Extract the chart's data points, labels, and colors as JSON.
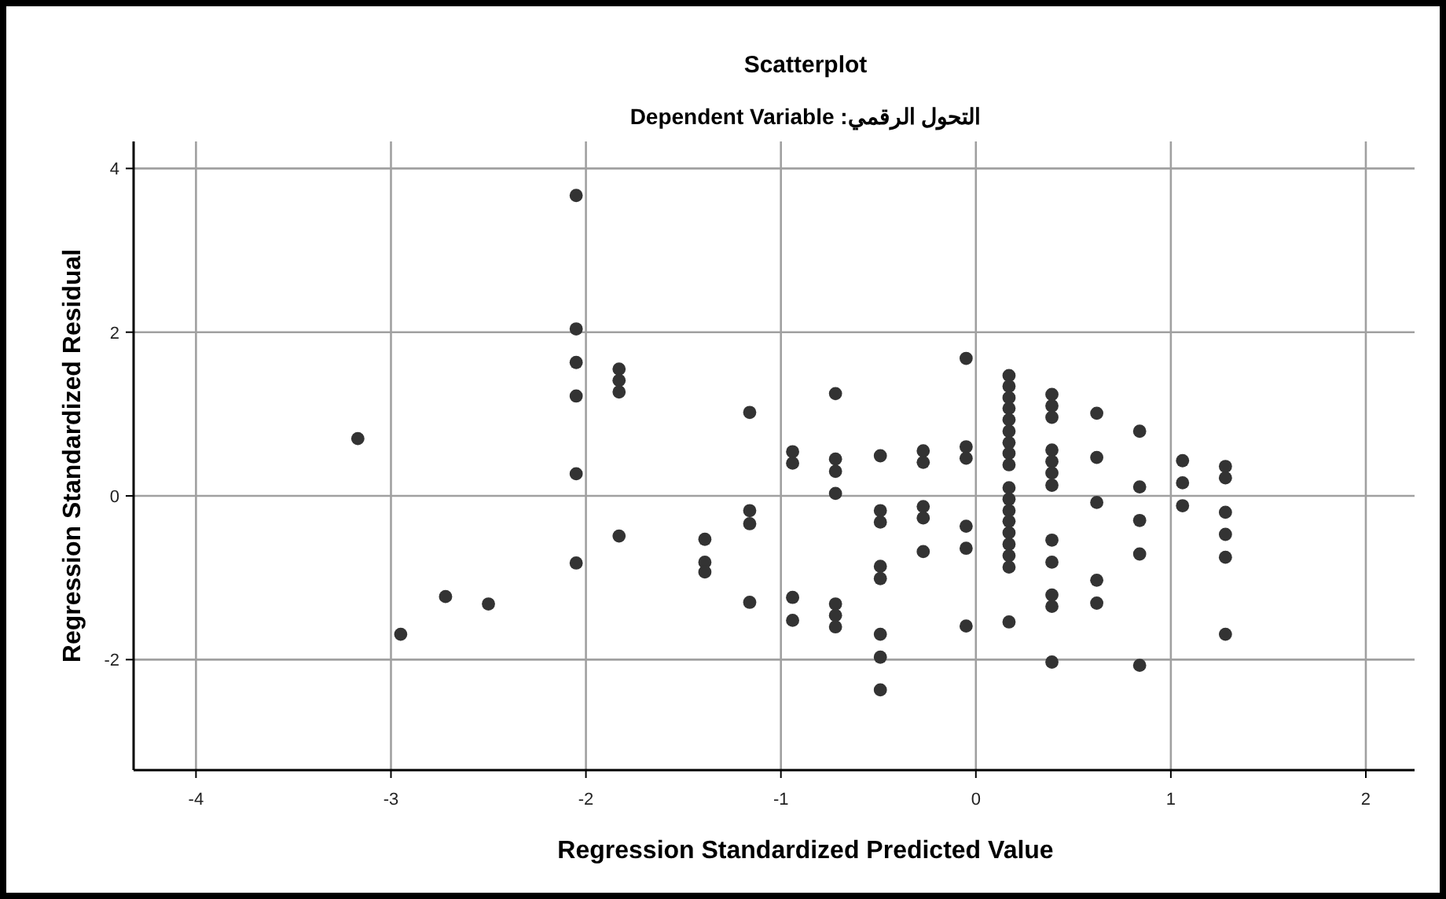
{
  "chart_data": {
    "type": "scatter",
    "title": "Scatterplot",
    "subtitle": "Dependent Variable :التحول الرقمي",
    "xlabel": "Regression Standardized Predicted Value",
    "ylabel": "Regression Standardized Residual",
    "x": [
      -3.17,
      -2.95,
      -2.72,
      -2.5,
      -2.05,
      -2.05,
      -2.05,
      -2.05,
      -2.05,
      -2.05,
      -1.83,
      -1.83,
      -1.83,
      -1.83,
      -1.39,
      -1.39,
      -1.39,
      -1.16,
      -1.16,
      -1.16,
      -1.16,
      -0.94,
      -0.94,
      -0.94,
      -0.94,
      -0.72,
      -0.72,
      -0.72,
      -0.72,
      -0.72,
      -0.72,
      -0.72,
      -0.49,
      -0.49,
      -0.49,
      -0.49,
      -0.49,
      -0.49,
      -0.49,
      -0.49,
      -0.27,
      -0.27,
      -0.27,
      -0.27,
      -0.27,
      -0.05,
      -0.05,
      -0.05,
      -0.05,
      -0.05,
      -0.05,
      0.17,
      0.17,
      0.17,
      0.17,
      0.17,
      0.17,
      0.17,
      0.17,
      0.17,
      0.17,
      0.17,
      0.17,
      0.17,
      0.17,
      0.17,
      0.17,
      0.17,
      0.17,
      0.39,
      0.39,
      0.39,
      0.39,
      0.39,
      0.39,
      0.39,
      0.39,
      0.39,
      0.39,
      0.39,
      0.39,
      0.62,
      0.62,
      0.62,
      0.62,
      0.62,
      0.84,
      0.84,
      0.84,
      0.84,
      0.84,
      1.06,
      1.06,
      1.06,
      1.28,
      1.28,
      1.28,
      1.28,
      1.28,
      1.28
    ],
    "values": [
      0.7,
      -1.69,
      -1.23,
      -1.32,
      3.67,
      2.04,
      1.63,
      1.22,
      0.27,
      -0.82,
      1.55,
      1.41,
      1.27,
      -0.49,
      -0.53,
      -0.81,
      -0.93,
      1.02,
      -0.18,
      -0.34,
      -1.3,
      0.54,
      0.4,
      -1.24,
      -1.52,
      1.25,
      0.45,
      0.3,
      0.03,
      -1.32,
      -1.46,
      -1.6,
      0.49,
      -0.18,
      -0.32,
      -0.86,
      -1.01,
      -1.69,
      -1.97,
      -2.37,
      0.55,
      0.41,
      -0.13,
      -0.27,
      -0.68,
      1.68,
      0.6,
      0.46,
      -0.37,
      -0.64,
      -1.59,
      1.47,
      1.34,
      1.2,
      1.07,
      0.93,
      0.79,
      0.65,
      0.52,
      0.38,
      0.1,
      -0.04,
      -0.18,
      -0.31,
      -0.45,
      -0.59,
      -0.73,
      -0.87,
      -1.54,
      1.24,
      1.1,
      0.96,
      0.56,
      0.42,
      0.28,
      0.13,
      -0.54,
      -0.81,
      -1.21,
      -1.35,
      -2.03,
      1.01,
      0.47,
      -0.08,
      -1.03,
      -1.31,
      0.79,
      0.11,
      -0.3,
      -0.71,
      -2.07,
      0.43,
      0.16,
      -0.12,
      0.36,
      0.22,
      -0.2,
      -0.47,
      -0.75,
      -1.69
    ],
    "color": "#333333",
    "marker": "circle",
    "xlim": [
      -4.32,
      2.25
    ],
    "ylim": [
      -3.35,
      4.33
    ],
    "xticks": [
      -4,
      -3,
      -2,
      -1,
      0,
      1,
      2
    ],
    "yticks": [
      -2,
      0,
      2,
      4
    ],
    "grid": true
  }
}
